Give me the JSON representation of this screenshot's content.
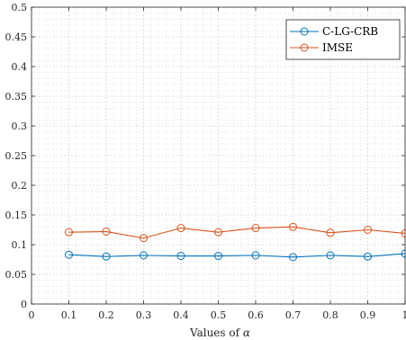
{
  "chart_data": {
    "type": "line",
    "xlabel_prefix": "Values of ",
    "xlabel_symbol": "α",
    "ylabel": "",
    "xlim": [
      0,
      1
    ],
    "ylim": [
      0,
      0.5
    ],
    "x": [
      0.1,
      0.2,
      0.3,
      0.4,
      0.5,
      0.6,
      0.7,
      0.8,
      0.9,
      1.0
    ],
    "xticks": [
      0,
      0.1,
      0.2,
      0.3,
      0.4,
      0.5,
      0.6,
      0.7,
      0.8,
      0.9,
      1
    ],
    "xtick_labels": [
      "0",
      "0.1",
      "0.2",
      "0.3",
      "0.4",
      "0.5",
      "0.6",
      "0.7",
      "0.8",
      "0.9",
      "1"
    ],
    "yticks": [
      0,
      0.05,
      0.1,
      0.15,
      0.2,
      0.25,
      0.3,
      0.35,
      0.4,
      0.45,
      0.5
    ],
    "ytick_labels": [
      "0",
      "0.05",
      "0.1",
      "0.15",
      "0.2",
      "0.25",
      "0.3",
      "0.35",
      "0.4",
      "0.45",
      "0.5"
    ],
    "grid": "on",
    "minor_grid": "on",
    "legend_location": "top-right",
    "series": [
      {
        "name": "C-LG-CRB",
        "color": "#0072BD",
        "marker": "circle",
        "values": [
          0.083,
          0.08,
          0.082,
          0.081,
          0.081,
          0.082,
          0.079,
          0.082,
          0.08,
          0.085
        ]
      },
      {
        "name": "IMSE",
        "color": "#D95319",
        "marker": "circle",
        "values": [
          0.121,
          0.122,
          0.111,
          0.128,
          0.121,
          0.128,
          0.13,
          0.12,
          0.125,
          0.119
        ]
      }
    ]
  }
}
